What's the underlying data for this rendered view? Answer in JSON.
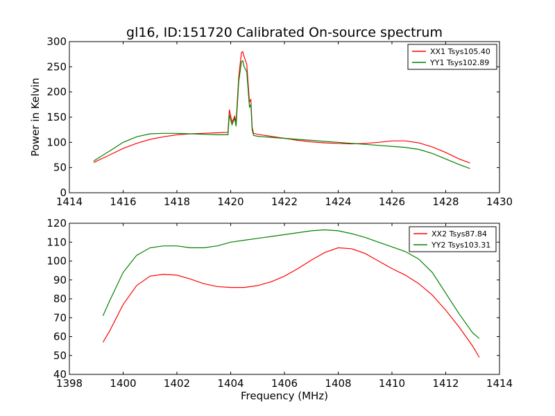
{
  "chart_data": [
    {
      "type": "line",
      "title": "gl16, ID:151720 Calibrated On-source spectrum",
      "xlabel": "",
      "ylabel": "Power in Kelvin",
      "xlim": [
        1414,
        1430
      ],
      "ylim": [
        0,
        300
      ],
      "xticks": [
        1414,
        1416,
        1418,
        1420,
        1422,
        1424,
        1426,
        1428,
        1430
      ],
      "yticks": [
        0,
        50,
        100,
        150,
        200,
        250,
        300
      ],
      "legend_position": "top-right",
      "series": [
        {
          "name": "XX1 Tsys105.40",
          "color": "#ff0000",
          "x": [
            1414.9,
            1415.5,
            1416,
            1416.5,
            1417,
            1417.5,
            1418,
            1418.5,
            1419,
            1419.5,
            1419.9,
            1419.95,
            1420.05,
            1420.15,
            1420.2,
            1420.3,
            1420.4,
            1420.45,
            1420.5,
            1420.6,
            1420.7,
            1420.75,
            1420.8,
            1420.85,
            1421,
            1421.5,
            1422,
            1422.5,
            1423,
            1423.5,
            1424,
            1424.5,
            1425,
            1425.5,
            1426,
            1426.5,
            1427,
            1427.5,
            1428,
            1428.5,
            1428.9
          ],
          "y": [
            60,
            75,
            88,
            98,
            106,
            111,
            115,
            117,
            118,
            119,
            120,
            165,
            140,
            152,
            140,
            230,
            278,
            280,
            270,
            255,
            180,
            185,
            130,
            118,
            116,
            112,
            108,
            104,
            101,
            99,
            98,
            97,
            98,
            100,
            103,
            103,
            99,
            91,
            80,
            67,
            59
          ]
        },
        {
          "name": "YY1 Tsys102.89",
          "color": "#008000",
          "x": [
            1414.9,
            1415.5,
            1416,
            1416.5,
            1417,
            1417.5,
            1418,
            1418.5,
            1419,
            1419.5,
            1419.9,
            1419.95,
            1420.05,
            1420.15,
            1420.2,
            1420.3,
            1420.4,
            1420.45,
            1420.5,
            1420.6,
            1420.7,
            1420.75,
            1420.8,
            1420.85,
            1421,
            1421.5,
            1422,
            1422.5,
            1423,
            1423.5,
            1424,
            1424.5,
            1425,
            1425.5,
            1426,
            1426.5,
            1427,
            1427.5,
            1428,
            1428.5,
            1428.9
          ],
          "y": [
            63,
            83,
            100,
            111,
            117,
            118,
            118,
            117,
            116,
            115,
            115,
            155,
            135,
            148,
            132,
            220,
            260,
            262,
            250,
            240,
            170,
            175,
            125,
            114,
            112,
            110,
            108,
            106,
            104,
            102,
            100,
            98,
            96,
            94,
            92,
            90,
            86,
            78,
            67,
            56,
            48
          ]
        }
      ]
    },
    {
      "type": "line",
      "title": "",
      "xlabel": "Frequency (MHz)",
      "ylabel": "",
      "xlim": [
        1398,
        1414
      ],
      "ylim": [
        40,
        120
      ],
      "xticks": [
        1398,
        1400,
        1402,
        1404,
        1406,
        1408,
        1410,
        1412,
        1414
      ],
      "yticks": [
        40,
        50,
        60,
        70,
        80,
        90,
        100,
        110,
        120
      ],
      "legend_position": "top-right",
      "series": [
        {
          "name": "XX2 Tsys87.84",
          "color": "#ff0000",
          "x": [
            1399.25,
            1399.5,
            1400,
            1400.5,
            1401,
            1401.5,
            1402,
            1402.5,
            1403,
            1403.5,
            1404,
            1404.5,
            1405,
            1405.5,
            1406,
            1406.5,
            1407,
            1407.5,
            1408,
            1408.5,
            1409,
            1409.5,
            1410,
            1410.5,
            1411,
            1411.5,
            1412,
            1412.5,
            1413,
            1413.25
          ],
          "y": [
            57,
            63,
            77,
            87,
            92,
            93,
            92.5,
            90.5,
            88,
            86.5,
            86,
            86,
            87,
            89,
            92,
            96,
            100.5,
            104.5,
            107,
            106.5,
            104,
            100,
            96,
            92.5,
            88,
            82,
            74,
            65,
            55,
            49
          ]
        },
        {
          "name": "YY2 Tsys103.31",
          "color": "#008000",
          "x": [
            1399.25,
            1399.5,
            1400,
            1400.5,
            1401,
            1401.5,
            1402,
            1402.5,
            1403,
            1403.5,
            1404,
            1404.5,
            1405,
            1405.5,
            1406,
            1406.5,
            1407,
            1407.5,
            1408,
            1408.5,
            1409,
            1409.5,
            1410,
            1410.5,
            1411,
            1411.5,
            1412,
            1412.5,
            1413,
            1413.25
          ],
          "y": [
            71,
            79,
            94,
            103,
            107,
            108,
            108,
            107,
            107,
            108,
            110,
            111,
            112,
            113,
            114,
            115,
            116,
            116.5,
            116,
            114.5,
            112.5,
            110,
            107.5,
            105,
            101,
            94,
            83,
            72,
            62,
            59
          ]
        }
      ]
    }
  ]
}
